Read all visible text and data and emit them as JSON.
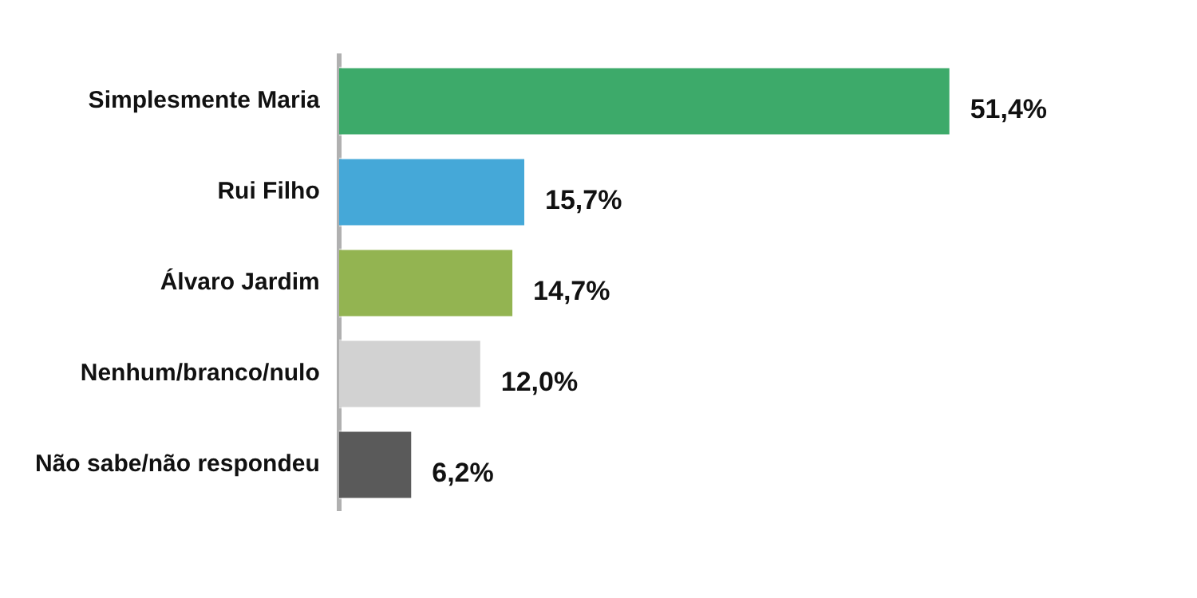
{
  "chart_data": {
    "type": "bar",
    "orientation": "horizontal",
    "categories": [
      "Simplesmente Maria",
      "Rui Filho",
      "Álvaro Jardim",
      "Nenhum/branco/nulo",
      "Não sabe/não respondeu"
    ],
    "values": [
      51.4,
      15.7,
      14.7,
      12.0,
      6.2
    ],
    "colors": [
      "#3daa6a",
      "#45a8d8",
      "#93b451",
      "#d2d2d2",
      "#5a5a5a"
    ],
    "value_labels": [
      "51,4%",
      "15,7%",
      "14,7%",
      "12,0%",
      "6,2%"
    ],
    "grid": false,
    "legend": false,
    "tick_labels": "y"
  }
}
